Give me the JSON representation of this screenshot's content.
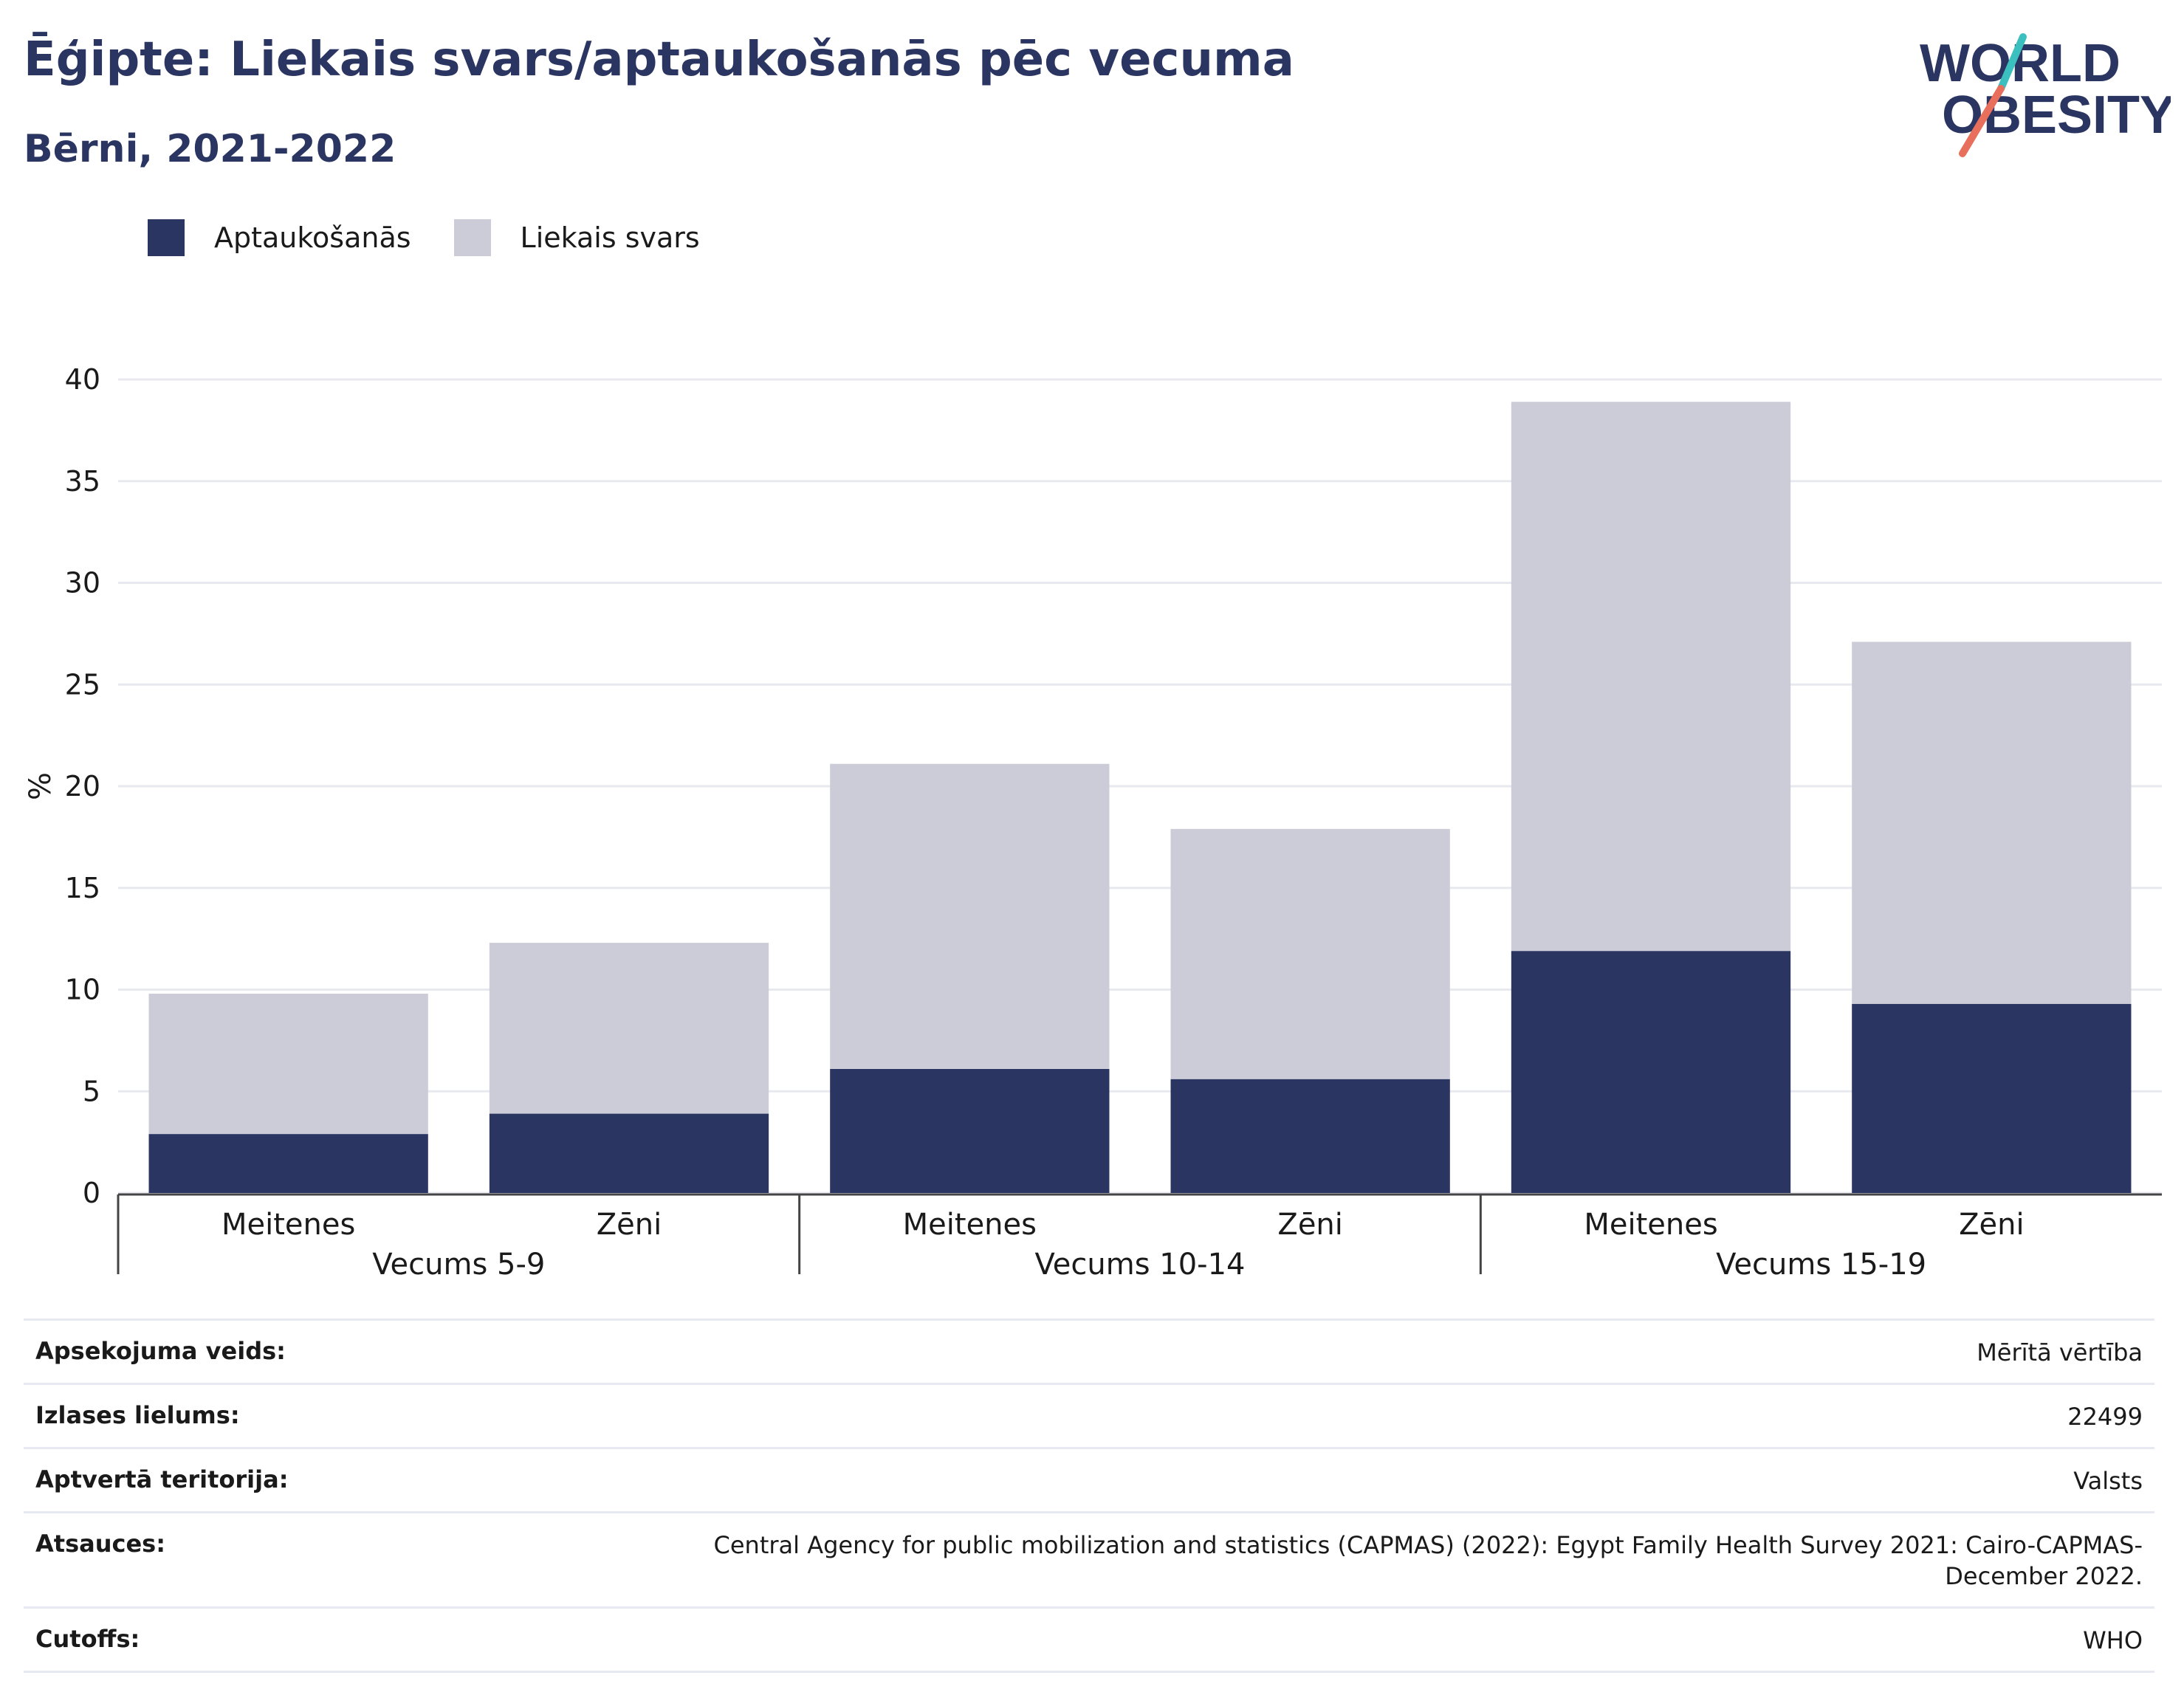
{
  "title": "Ēģipte: Liekais svars/aptaukošanās pēc vecuma",
  "subtitle": "Bērni, 2021-2022",
  "logo": {
    "line1": "WORLD",
    "line2": "OBESITY"
  },
  "colors": {
    "obesity": "#2a3562",
    "overweight": "#cbccd7",
    "title": "#2a3562",
    "logo_slash_top": "#3bbfbf",
    "logo_slash_bottom": "#e86f5c"
  },
  "legend": [
    {
      "label": "Aptaukošanās",
      "color": "#2a3562"
    },
    {
      "label": "Liekais svars",
      "color": "#cbccd7"
    }
  ],
  "chart_data": {
    "type": "bar",
    "stacked": true,
    "ylabel": "%",
    "ylim": [
      0,
      40
    ],
    "yticks": [
      0,
      5,
      10,
      15,
      20,
      25,
      30,
      35,
      40
    ],
    "grid": true,
    "legend_position": "top-left",
    "groups": [
      "Vecums 5-9",
      "Vecums 10-14",
      "Vecums 15-19"
    ],
    "categories": [
      "Meitenes",
      "Zēni",
      "Meitenes",
      "Zēni",
      "Meitenes",
      "Zēni"
    ],
    "category_group": [
      0,
      0,
      1,
      1,
      2,
      2
    ],
    "series": [
      {
        "name": "Aptaukošanās",
        "color": "#2a3562",
        "values": [
          2.9,
          3.9,
          6.1,
          5.6,
          11.9,
          9.3
        ]
      },
      {
        "name": "Liekais svars",
        "color": "#cbccd7",
        "values": [
          6.9,
          8.4,
          15.0,
          12.3,
          27.0,
          17.8
        ]
      }
    ]
  },
  "meta": [
    {
      "key": "Apsekojuma veids:",
      "value": "Mērītā vērtība"
    },
    {
      "key": "Izlases lielums:",
      "value": "22499"
    },
    {
      "key": "Aptvertā teritorija:",
      "value": "Valsts"
    },
    {
      "key": "Atsauces:",
      "value": "Central Agency for public mobilization and statistics (CAPMAS) (2022): Egypt Family Health Survey 2021: Cairo-CAPMAS-December 2022."
    },
    {
      "key": "Cutoffs:",
      "value": "WHO"
    }
  ]
}
